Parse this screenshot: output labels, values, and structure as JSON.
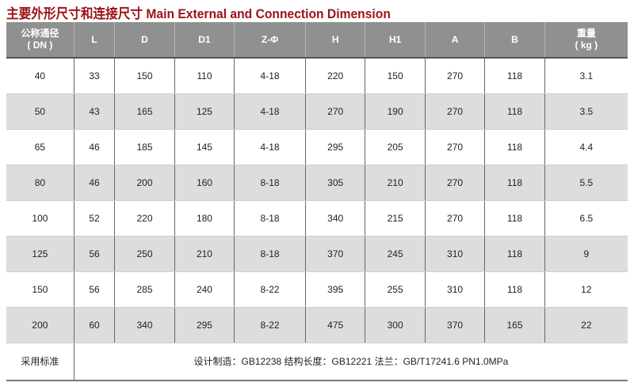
{
  "title": "主要外形尺寸和连接尺寸 Main External and Connection Dimension",
  "headers": [
    [
      "公称通径",
      "( DN )"
    ],
    [
      "L",
      ""
    ],
    [
      "D",
      ""
    ],
    [
      "D1",
      ""
    ],
    [
      "Z-Φ",
      ""
    ],
    [
      "H",
      ""
    ],
    [
      "H1",
      ""
    ],
    [
      "A",
      ""
    ],
    [
      "B",
      ""
    ],
    [
      "重量",
      "( kg )"
    ]
  ],
  "rows": [
    [
      "40",
      "33",
      "150",
      "110",
      "4-18",
      "220",
      "150",
      "270",
      "118",
      "3.1"
    ],
    [
      "50",
      "43",
      "165",
      "125",
      "4-18",
      "270",
      "190",
      "270",
      "118",
      "3.5"
    ],
    [
      "65",
      "46",
      "185",
      "145",
      "4-18",
      "295",
      "205",
      "270",
      "118",
      "4.4"
    ],
    [
      "80",
      "46",
      "200",
      "160",
      "8-18",
      "305",
      "210",
      "270",
      "118",
      "5.5"
    ],
    [
      "100",
      "52",
      "220",
      "180",
      "8-18",
      "340",
      "215",
      "270",
      "118",
      "6.5"
    ],
    [
      "125",
      "56",
      "250",
      "210",
      "8-18",
      "370",
      "245",
      "310",
      "118",
      "9"
    ],
    [
      "150",
      "56",
      "285",
      "240",
      "8-22",
      "395",
      "255",
      "310",
      "118",
      "12"
    ],
    [
      "200",
      "60",
      "340",
      "295",
      "8-22",
      "475",
      "300",
      "370",
      "165",
      "22"
    ]
  ],
  "footer": {
    "label": "采用标准",
    "text": "设计制造：GB12238   结构长度：GB12221   法兰：GB/T17241.6   PN1.0MPa"
  },
  "colors": {
    "title": "#9b1318",
    "header_bg": "#8f9090",
    "alt_row": "#dcdedd"
  }
}
